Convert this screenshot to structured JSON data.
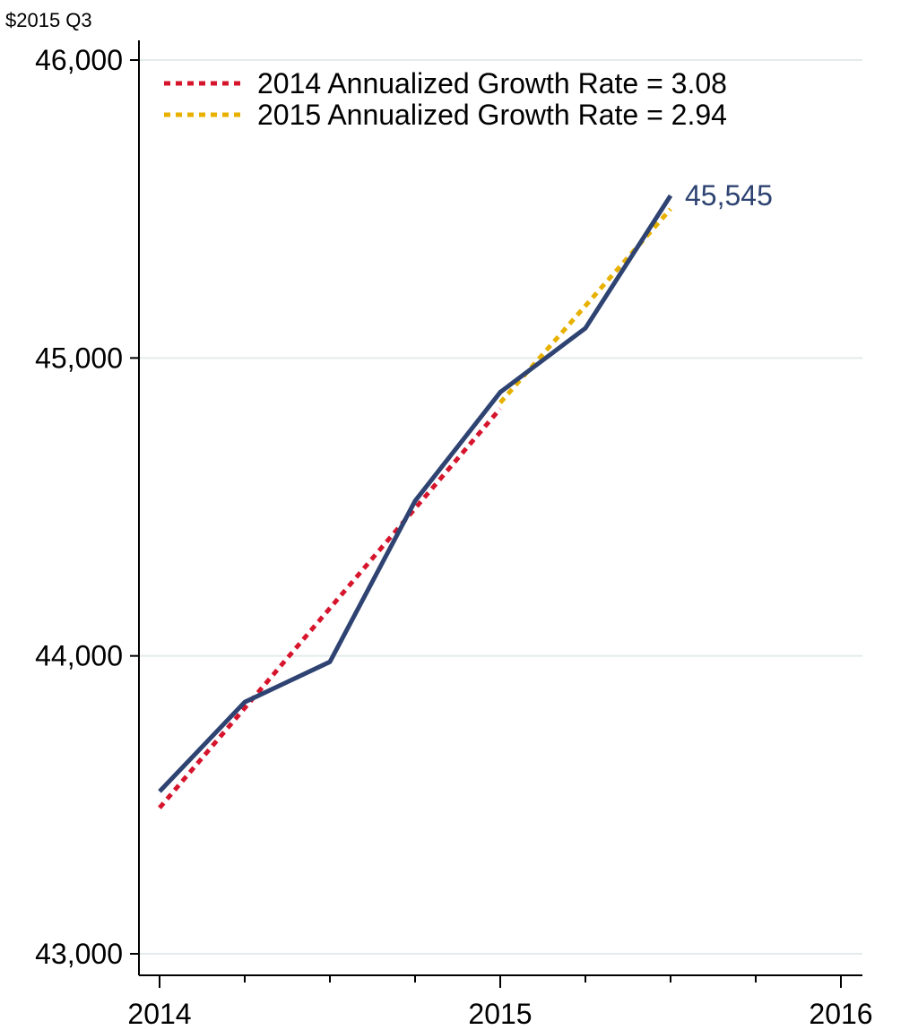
{
  "chart_data": {
    "type": "line",
    "unit_label": "$2015 Q3",
    "x_ticks": [
      {
        "value": 2014,
        "label": "2014"
      },
      {
        "value": 2015,
        "label": "2015"
      },
      {
        "value": 2016,
        "label": "2016"
      }
    ],
    "x_minor_ticks": [
      2014.25,
      2014.5,
      2014.75,
      2015.25,
      2015.5,
      2015.75
    ],
    "y_ticks": [
      {
        "value": 43000,
        "label": "43,000"
      },
      {
        "value": 44000,
        "label": "44,000"
      },
      {
        "value": 45000,
        "label": "45,000"
      },
      {
        "value": 46000,
        "label": "46,000"
      }
    ],
    "xlim": [
      2014,
      2016
    ],
    "ylim": [
      43000,
      46000
    ],
    "grid": true,
    "legend_position": "top-left",
    "series": [
      {
        "role": "actual",
        "style": "solid",
        "color": "#2e4372",
        "points": [
          {
            "x": 2014.0,
            "y": 43545
          },
          {
            "x": 2014.25,
            "y": 43845
          },
          {
            "x": 2014.5,
            "y": 43980
          },
          {
            "x": 2014.75,
            "y": 44520
          },
          {
            "x": 2015.0,
            "y": 44885
          },
          {
            "x": 2015.25,
            "y": 45100
          },
          {
            "x": 2015.5,
            "y": 45545
          }
        ],
        "end_label": "45,545"
      },
      {
        "name": "2014 Annualized Growth Rate = 3.08",
        "style": "dotted",
        "color": "#d6142c",
        "points": [
          {
            "x": 2014.0,
            "y": 43490
          },
          {
            "x": 2015.0,
            "y": 44830
          }
        ]
      },
      {
        "name": "2015 Annualized Growth Rate = 2.94",
        "style": "dotted",
        "color": "#e8b100",
        "points": [
          {
            "x": 2015.0,
            "y": 44850
          },
          {
            "x": 2015.5,
            "y": 45500
          }
        ]
      }
    ]
  }
}
